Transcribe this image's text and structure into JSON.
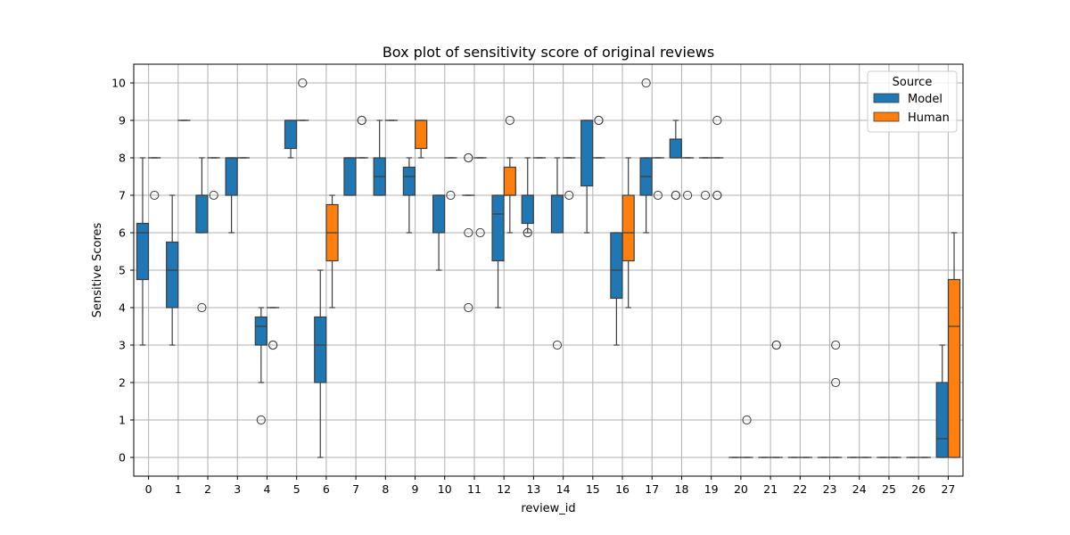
{
  "chart_data": {
    "type": "box",
    "title": "Box plot of sensitivity score of original reviews",
    "xlabel": "review_id",
    "ylabel": "Sensitive Scores",
    "ylim": [
      -0.5,
      10.5
    ],
    "yticks": [
      0,
      1,
      2,
      3,
      4,
      5,
      6,
      7,
      8,
      9,
      10
    ],
    "grid": true,
    "legend": {
      "title": "Source",
      "placement": "top-right"
    },
    "categories": [
      "0",
      "1",
      "2",
      "3",
      "4",
      "5",
      "6",
      "7",
      "8",
      "9",
      "10",
      "11",
      "12",
      "13",
      "14",
      "15",
      "16",
      "17",
      "18",
      "19",
      "20",
      "21",
      "22",
      "23",
      "24",
      "25",
      "26",
      "27"
    ],
    "series": [
      {
        "name": "Model",
        "color": "#1f77b4",
        "boxes": [
          {
            "q1": 4.75,
            "med": 6,
            "q3": 6.25,
            "wlo": 3,
            "whi": 8,
            "fliers": []
          },
          {
            "q1": 4,
            "med": 5,
            "q3": 5.75,
            "wlo": 3,
            "whi": 7,
            "fliers": []
          },
          {
            "q1": 6,
            "med": 7,
            "q3": 7,
            "wlo": 6,
            "whi": 8,
            "fliers": [
              4
            ]
          },
          {
            "q1": 7,
            "med": 8,
            "q3": 8,
            "wlo": 6,
            "whi": 8,
            "fliers": []
          },
          {
            "q1": 3,
            "med": 3.5,
            "q3": 3.75,
            "wlo": 2,
            "whi": 4,
            "fliers": [
              1
            ]
          },
          {
            "q1": 8.25,
            "med": 9,
            "q3": 9,
            "wlo": 8,
            "whi": 9,
            "fliers": []
          },
          {
            "q1": 2,
            "med": 3,
            "q3": 3.75,
            "wlo": 0,
            "whi": 5,
            "fliers": []
          },
          {
            "q1": 7,
            "med": 8,
            "q3": 8,
            "wlo": 7,
            "whi": 8,
            "fliers": []
          },
          {
            "q1": 7,
            "med": 7.5,
            "q3": 8,
            "wlo": 7,
            "whi": 9,
            "fliers": []
          },
          {
            "q1": 7,
            "med": 7.5,
            "q3": 7.75,
            "wlo": 6,
            "whi": 8,
            "fliers": []
          },
          {
            "q1": 6,
            "med": 7,
            "q3": 7,
            "wlo": 5,
            "whi": 7,
            "fliers": []
          },
          {
            "q1": 7,
            "med": 7,
            "q3": 7,
            "wlo": 7,
            "whi": 7,
            "fliers": [
              4,
              6,
              8,
              8
            ]
          },
          {
            "q1": 5.25,
            "med": 6.5,
            "q3": 7,
            "wlo": 4,
            "whi": 7,
            "fliers": []
          },
          {
            "q1": 6.25,
            "med": 7,
            "q3": 7,
            "wlo": 6,
            "whi": 8,
            "fliers": [
              6,
              6
            ]
          },
          {
            "q1": 6,
            "med": 7,
            "q3": 7,
            "wlo": 6,
            "whi": 8,
            "fliers": [
              3
            ]
          },
          {
            "q1": 7.25,
            "med": 9,
            "q3": 9,
            "wlo": 6,
            "whi": 9,
            "fliers": []
          },
          {
            "q1": 4.25,
            "med": 5,
            "q3": 6,
            "wlo": 3,
            "whi": 6,
            "fliers": []
          },
          {
            "q1": 7,
            "med": 7.5,
            "q3": 8,
            "wlo": 6,
            "whi": 8,
            "fliers": [
              10
            ]
          },
          {
            "q1": 8,
            "med": 8,
            "q3": 8.5,
            "wlo": 8,
            "whi": 9,
            "fliers": [
              7,
              7
            ]
          },
          {
            "q1": 8,
            "med": 8,
            "q3": 8,
            "wlo": 8,
            "whi": 8,
            "fliers": [
              7
            ]
          },
          {
            "q1": 0,
            "med": 0,
            "q3": 0,
            "wlo": 0,
            "whi": 0,
            "fliers": []
          },
          {
            "q1": 0,
            "med": 0,
            "q3": 0,
            "wlo": 0,
            "whi": 0,
            "fliers": []
          },
          {
            "q1": 0,
            "med": 0,
            "q3": 0,
            "wlo": 0,
            "whi": 0,
            "fliers": []
          },
          {
            "q1": 0,
            "med": 0,
            "q3": 0,
            "wlo": 0,
            "whi": 0,
            "fliers": []
          },
          {
            "q1": 0,
            "med": 0,
            "q3": 0,
            "wlo": 0,
            "whi": 0,
            "fliers": []
          },
          {
            "q1": 0,
            "med": 0,
            "q3": 0,
            "wlo": 0,
            "whi": 0,
            "fliers": []
          },
          {
            "q1": 0,
            "med": 0,
            "q3": 0,
            "wlo": 0,
            "whi": 0,
            "fliers": []
          },
          {
            "q1": 0,
            "med": 0.5,
            "q3": 2,
            "wlo": 0,
            "whi": 3,
            "fliers": []
          }
        ]
      },
      {
        "name": "Human",
        "color": "#ff7f0e",
        "boxes": [
          {
            "q1": 8,
            "med": 8,
            "q3": 8,
            "wlo": 8,
            "whi": 8,
            "fliers": [
              7
            ]
          },
          {
            "q1": 9,
            "med": 9,
            "q3": 9,
            "wlo": 9,
            "whi": 9,
            "fliers": []
          },
          {
            "q1": 8,
            "med": 8,
            "q3": 8,
            "wlo": 8,
            "whi": 8,
            "fliers": [
              7
            ]
          },
          {
            "q1": 8,
            "med": 8,
            "q3": 8,
            "wlo": 8,
            "whi": 8,
            "fliers": []
          },
          {
            "q1": 4,
            "med": 4,
            "q3": 4,
            "wlo": 4,
            "whi": 4,
            "fliers": [
              3,
              3
            ]
          },
          {
            "q1": 9,
            "med": 9,
            "q3": 9,
            "wlo": 9,
            "whi": 9,
            "fliers": [
              10
            ]
          },
          {
            "q1": 5.25,
            "med": 6,
            "q3": 6.75,
            "wlo": 4,
            "whi": 7,
            "fliers": []
          },
          {
            "q1": 8,
            "med": 8,
            "q3": 8,
            "wlo": 8,
            "whi": 8,
            "fliers": [
              9,
              9
            ]
          },
          {
            "q1": 9,
            "med": 9,
            "q3": 9,
            "wlo": 9,
            "whi": 9,
            "fliers": []
          },
          {
            "q1": 8.25,
            "med": 9,
            "q3": 9,
            "wlo": 8,
            "whi": 9,
            "fliers": []
          },
          {
            "q1": 8,
            "med": 8,
            "q3": 8,
            "wlo": 8,
            "whi": 8,
            "fliers": [
              7
            ]
          },
          {
            "q1": 8,
            "med": 8,
            "q3": 8,
            "wlo": 8,
            "whi": 8,
            "fliers": [
              6
            ]
          },
          {
            "q1": 7,
            "med": 7,
            "q3": 7.75,
            "wlo": 6,
            "whi": 8,
            "fliers": [
              9
            ]
          },
          {
            "q1": 8,
            "med": 8,
            "q3": 8,
            "wlo": 8,
            "whi": 8,
            "fliers": []
          },
          {
            "q1": 8,
            "med": 8,
            "q3": 8,
            "wlo": 8,
            "whi": 8,
            "fliers": [
              7
            ]
          },
          {
            "q1": 8,
            "med": 8,
            "q3": 8,
            "wlo": 8,
            "whi": 8,
            "fliers": [
              9,
              9
            ]
          },
          {
            "q1": 5.25,
            "med": 6,
            "q3": 7,
            "wlo": 4,
            "whi": 8,
            "fliers": []
          },
          {
            "q1": 8,
            "med": 8,
            "q3": 8,
            "wlo": 8,
            "whi": 8,
            "fliers": [
              7
            ]
          },
          {
            "q1": 8,
            "med": 8,
            "q3": 8,
            "wlo": 8,
            "whi": 8,
            "fliers": [
              7
            ]
          },
          {
            "q1": 8,
            "med": 8,
            "q3": 8,
            "wlo": 8,
            "whi": 8,
            "fliers": [
              7,
              7,
              9
            ]
          },
          {
            "q1": 0,
            "med": 0,
            "q3": 0,
            "wlo": 0,
            "whi": 0,
            "fliers": [
              1
            ]
          },
          {
            "q1": 0,
            "med": 0,
            "q3": 0,
            "wlo": 0,
            "whi": 0,
            "fliers": [
              3,
              3
            ]
          },
          {
            "q1": 0,
            "med": 0,
            "q3": 0,
            "wlo": 0,
            "whi": 0,
            "fliers": []
          },
          {
            "q1": 0,
            "med": 0,
            "q3": 0,
            "wlo": 0,
            "whi": 0,
            "fliers": [
              2,
              3
            ]
          },
          {
            "q1": 0,
            "med": 0,
            "q3": 0,
            "wlo": 0,
            "whi": 0,
            "fliers": []
          },
          {
            "q1": 0,
            "med": 0,
            "q3": 0,
            "wlo": 0,
            "whi": 0,
            "fliers": []
          },
          {
            "q1": 0,
            "med": 0,
            "q3": 0,
            "wlo": 0,
            "whi": 0,
            "fliers": []
          },
          {
            "q1": 0,
            "med": 3.5,
            "q3": 4.75,
            "wlo": 0,
            "whi": 6,
            "fliers": []
          }
        ]
      }
    ]
  }
}
